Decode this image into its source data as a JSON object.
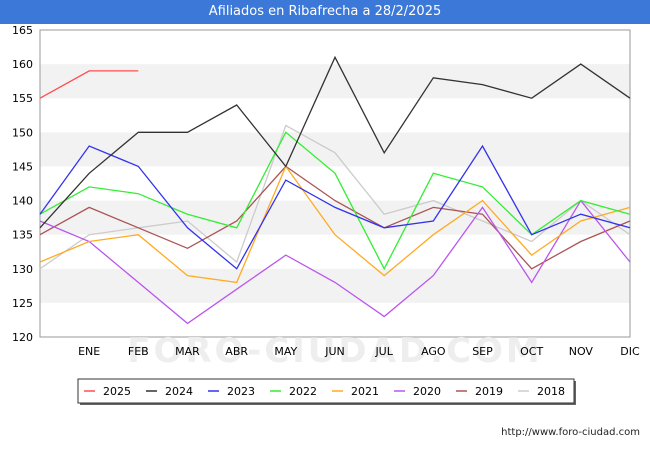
{
  "header": {
    "title": "Afiliados en Ribafrecha a 28/2/2025"
  },
  "footer": {
    "url": "http://www.foro-ciudad.com"
  },
  "watermark": "FORO-CIUDAD.COM",
  "chart_data": {
    "type": "line",
    "title": "Afiliados en Ribafrecha a 28/2/2025",
    "xlabel": "",
    "ylabel": "",
    "ylim": [
      120,
      165
    ],
    "yticks": [
      120,
      125,
      130,
      135,
      140,
      145,
      150,
      155,
      160,
      165
    ],
    "categories": [
      "",
      "ENE",
      "FEB",
      "MAR",
      "ABR",
      "MAY",
      "JUN",
      "JUL",
      "AGO",
      "SEP",
      "OCT",
      "NOV",
      "DIC"
    ],
    "grid": "horizontal bands",
    "legend_position": "bottom",
    "series": [
      {
        "name": "2025",
        "color": "#ff4d4d",
        "values": [
          155,
          159,
          159,
          null,
          null,
          null,
          null,
          null,
          null,
          null,
          null,
          null,
          null
        ]
      },
      {
        "name": "2024",
        "color": "#333333",
        "values": [
          136,
          144,
          150,
          150,
          154,
          145,
          161,
          147,
          158,
          157,
          155,
          160,
          155
        ]
      },
      {
        "name": "2023",
        "color": "#3333ee",
        "values": [
          138,
          148,
          145,
          136,
          130,
          143,
          139,
          136,
          137,
          148,
          135,
          138,
          136
        ]
      },
      {
        "name": "2022",
        "color": "#33ee33",
        "values": [
          138,
          142,
          141,
          138,
          136,
          150,
          144,
          130,
          144,
          142,
          135,
          140,
          138
        ]
      },
      {
        "name": "2021",
        "color": "#ffaa22",
        "values": [
          131,
          134,
          135,
          129,
          128,
          145,
          135,
          129,
          135,
          140,
          132,
          137,
          139
        ]
      },
      {
        "name": "2020",
        "color": "#bb55ee",
        "values": [
          137,
          134,
          128,
          122,
          127,
          132,
          128,
          123,
          129,
          139,
          128,
          140,
          131
        ]
      },
      {
        "name": "2019",
        "color": "#aa5555",
        "values": [
          135,
          139,
          136,
          133,
          137,
          145,
          140,
          136,
          139,
          138,
          130,
          134,
          137
        ]
      },
      {
        "name": "2018",
        "color": "#cccccc",
        "values": [
          130,
          135,
          136,
          137,
          131,
          151,
          147,
          138,
          140,
          137,
          134,
          140,
          135
        ]
      }
    ]
  }
}
